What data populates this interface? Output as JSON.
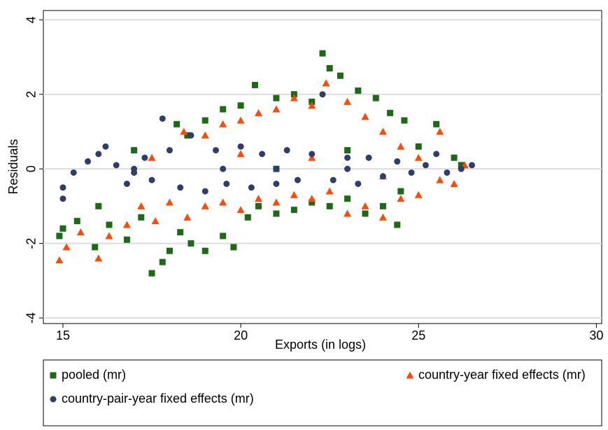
{
  "chart_data": {
    "type": "scatter",
    "xlabel": "Exports (in logs)",
    "ylabel": "Residuals",
    "xlim": [
      14.45,
      30.15
    ],
    "ylim": [
      -4.15,
      4.25
    ],
    "xticks": [
      15,
      20,
      25,
      30
    ],
    "yticks": [
      -4,
      -2,
      0,
      2,
      4
    ],
    "grid": true,
    "legend": "bottom",
    "series": [
      {
        "name": "pooled (mr)",
        "color": "#1b6a14",
        "marker": "square",
        "x": [
          14.9,
          15,
          15.4,
          15.9,
          16,
          16.3,
          16.8,
          17.2,
          17.5,
          17.8,
          18,
          18.3,
          18.6,
          19,
          19.5,
          19.8,
          20.2,
          20.5,
          21,
          21.5,
          22,
          22.5,
          23,
          23.5,
          24,
          24.4,
          18.2,
          18.5,
          19,
          19.5,
          20,
          20.4,
          21,
          21.5,
          22,
          22.3,
          22.5,
          22.8,
          23.3,
          23.8,
          24.2,
          24.6,
          25,
          25.5,
          26,
          26.2,
          17,
          21,
          23,
          24.5
        ],
        "y": [
          -1.8,
          -1.6,
          -1.4,
          -2.1,
          -1.0,
          -1.5,
          -1.9,
          -1.3,
          -2.8,
          -2.5,
          -2.2,
          -1.7,
          -2.0,
          -2.2,
          -1.8,
          -2.1,
          -1.3,
          -1.0,
          -1.2,
          -1.1,
          -0.9,
          -1.0,
          -0.8,
          -1.2,
          -1.0,
          -1.5,
          1.2,
          0.9,
          1.3,
          1.6,
          1.7,
          2.25,
          1.9,
          2.0,
          1.8,
          3.1,
          2.7,
          2.5,
          2.1,
          1.9,
          1.5,
          1.3,
          0.6,
          1.2,
          0.3,
          0.1,
          0.5,
          0.0,
          0.5,
          -0.6
        ]
      },
      {
        "name": "country-year fixed effects (mr)",
        "color": "#ff4a06",
        "marker": "triangle",
        "x": [
          14.9,
          15.1,
          15.5,
          16,
          16.3,
          16.8,
          17.2,
          17.6,
          18,
          18.5,
          19,
          19.5,
          20,
          20.5,
          21,
          21.5,
          22,
          22.5,
          23,
          23.5,
          24,
          24.5,
          25,
          25.6,
          26,
          18.4,
          19,
          19.5,
          20,
          20.5,
          21,
          21.5,
          22,
          22.4,
          23,
          23.5,
          24,
          24.5,
          25,
          25.6,
          26.3,
          17.5,
          20,
          22,
          24
        ],
        "y": [
          -2.45,
          -2.1,
          -1.7,
          -2.4,
          -1.8,
          -1.5,
          -1.0,
          -1.4,
          -0.9,
          -1.3,
          -1.0,
          -0.9,
          -1.1,
          -0.8,
          -0.9,
          -0.7,
          -0.8,
          -0.6,
          -1.2,
          -1.0,
          -1.3,
          -0.8,
          -0.7,
          -0.3,
          -0.4,
          1.0,
          0.9,
          1.2,
          1.3,
          1.5,
          1.6,
          1.9,
          1.7,
          2.3,
          1.8,
          1.4,
          1.0,
          0.6,
          0.3,
          1.0,
          0.1,
          0.3,
          0.4,
          0.3,
          -0.2
        ]
      },
      {
        "name": "country-pair-year fixed effects (mr)",
        "color": "#2e3d6b",
        "marker": "circle",
        "x": [
          15,
          15.3,
          15.7,
          16,
          16.2,
          16.5,
          16.8,
          17,
          17.3,
          17.5,
          17.8,
          18,
          18.3,
          18.6,
          19,
          19.3,
          19.6,
          20,
          20.3,
          20.6,
          21,
          21.3,
          21.6,
          22,
          22.3,
          22.6,
          23,
          23.3,
          23.6,
          24,
          24.4,
          24.8,
          25.2,
          25.5,
          25.8,
          26.2,
          26.5,
          15,
          19.5,
          21,
          23,
          17
        ],
        "y": [
          -0.5,
          -0.1,
          0.2,
          0.4,
          0.6,
          0.1,
          -0.4,
          0.0,
          0.3,
          -0.3,
          1.35,
          0.5,
          -0.5,
          0.9,
          -0.6,
          0.5,
          -0.4,
          0.6,
          -0.5,
          0.4,
          -0.4,
          0.5,
          -0.3,
          0.4,
          2.0,
          -0.3,
          0.3,
          -0.4,
          0.3,
          -0.2,
          0.2,
          -0.1,
          0.1,
          0.4,
          -0.1,
          0.0,
          0.1,
          -0.8,
          0.0,
          0.0,
          0.0,
          -0.1
        ]
      }
    ]
  }
}
